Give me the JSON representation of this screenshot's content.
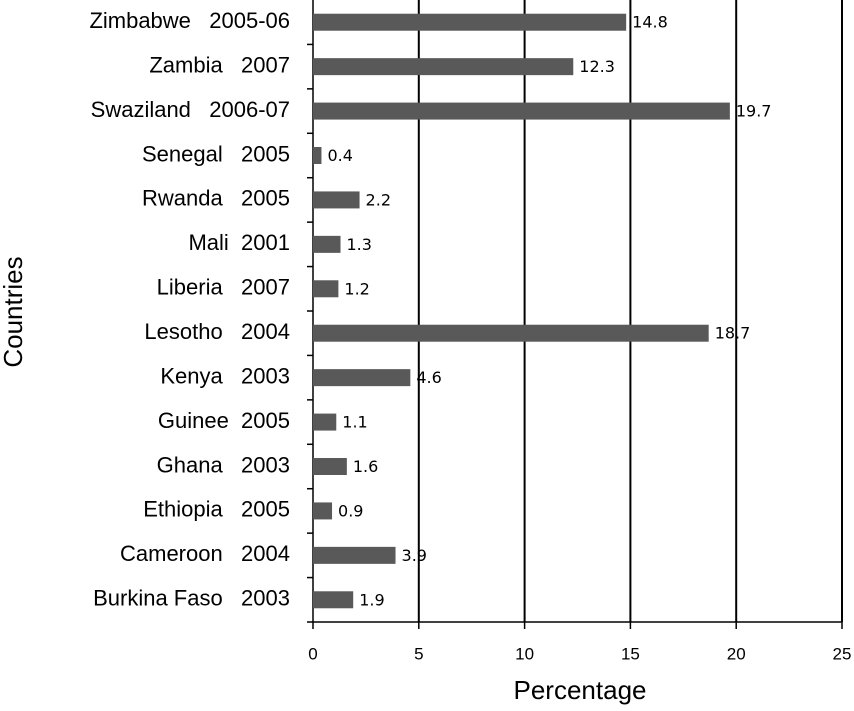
{
  "chart_data": {
    "type": "bar",
    "orientation": "horizontal",
    "xlabel": "Percentage",
    "ylabel": "Countries",
    "categories": [
      "Zimbabwe   2005-06",
      "Zambia   2007",
      "Swaziland   2006-07",
      "Senegal   2005",
      "Rwanda   2005",
      "Mali  2001",
      "Liberia   2007",
      "Lesotho   2004",
      "Kenya   2003",
      "Guinee  2005",
      "Ghana   2003",
      "Ethiopia   2005",
      "Cameroon   2004",
      "Burkina Faso   2003"
    ],
    "values": [
      14.8,
      12.3,
      19.7,
      0.4,
      2.2,
      1.3,
      1.2,
      18.7,
      4.6,
      1.1,
      1.6,
      0.9,
      3.9,
      1.9
    ],
    "color": "#595959",
    "xlim": [
      0,
      25
    ],
    "xticks": [
      0,
      5,
      10,
      15,
      20,
      25
    ],
    "grid": true
  }
}
